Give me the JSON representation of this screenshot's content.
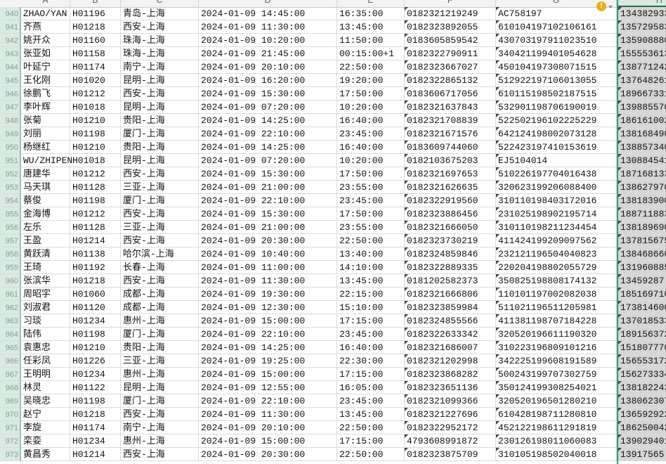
{
  "columns": [
    "A",
    "B",
    "C",
    "D",
    "E",
    "F",
    "G",
    "H"
  ],
  "selected_column": "H",
  "accent_color": "#217346",
  "warning_icon": "warning-circle-icon",
  "rows": [
    {
      "n": "940",
      "a": "ZHAO/YAN",
      "b": "H01196",
      "c": "青岛-上海",
      "d": "2024-01-09 14:45:00",
      "e": "16:35:00",
      "f": "0182321219249",
      "g": "AC758197",
      "h": "134382933"
    },
    {
      "n": "941",
      "a": "齐燕",
      "b": "H01218",
      "c": "西安-上海",
      "d": "2024-01-09 11:30:00",
      "e": "13:45:00",
      "f": "0182323892055",
      "g": "610104197102106161",
      "h": "135729583"
    },
    {
      "n": "942",
      "a": "姚开众",
      "b": "H01160",
      "c": "珠海-上海",
      "d": "2024-01-09 10:20:00",
      "e": "11:50:00",
      "f": "0183605859542",
      "g": "430703197911023510",
      "h": "135908880"
    },
    {
      "n": "943",
      "a": "张亚如",
      "b": "H01158",
      "c": "珠海-上海",
      "d": "2024-01-09 21:45:00",
      "e": "00:15:00+1",
      "f": "0182322790911",
      "g": "340421199401054628",
      "h": "155553613"
    },
    {
      "n": "944",
      "a": "叶延宁",
      "b": "H01174",
      "c": "南宁-上海",
      "d": "2024-01-09 20:10:00",
      "e": "22:50:00",
      "f": "0182323667027",
      "g": "450104197308071515",
      "h": "138771242"
    },
    {
      "n": "945",
      "a": "王化刚",
      "b": "H01020",
      "c": "昆明-上海",
      "d": "2024-01-09 16:20:00",
      "e": "19:20:00",
      "f": "0182322865132",
      "g": "512922197106013055",
      "h": "137648261"
    },
    {
      "n": "946",
      "a": "徐鹏飞",
      "b": "H01212",
      "c": "西安-上海",
      "d": "2024-01-09 15:30:00",
      "e": "17:50:00",
      "f": "0183606717056",
      "g": "610115198502187515",
      "h": "189667331"
    },
    {
      "n": "947",
      "a": "李叶辉",
      "b": "H01018",
      "c": "昆明-上海",
      "d": "2024-01-09 07:20:00",
      "e": "10:20:00",
      "f": "0182321637843",
      "g": "532901198706190019",
      "h": "139885570"
    },
    {
      "n": "948",
      "a": "张菊",
      "b": "H01210",
      "c": "贵阳-上海",
      "d": "2024-01-09 14:25:00",
      "e": "16:40:00",
      "f": "0182321708839",
      "g": "522502196102225229",
      "h": "186161002"
    },
    {
      "n": "949",
      "a": "刘丽",
      "b": "H01198",
      "c": "厦门-上海",
      "d": "2024-01-09 22:10:00",
      "e": "23:45:00",
      "f": "0182321671576",
      "g": "642124198002073128",
      "h": "138168490"
    },
    {
      "n": "950",
      "a": "杨继红",
      "b": "H01210",
      "c": "贵阳-上海",
      "d": "2024-01-09 14:25:00",
      "e": "16:40:00",
      "f": "0183609744060",
      "g": "522423197410153619",
      "h": "138857340"
    },
    {
      "n": "951",
      "a": "WU/ZHIPEN",
      "b": "H01018",
      "c": "昆明-上海",
      "d": "2024-01-09 07:20:00",
      "e": "10:20:00",
      "f": "0182103675203",
      "g": "EJ5104014",
      "h": "130884541"
    },
    {
      "n": "952",
      "a": "唐建华",
      "b": "H01212",
      "c": "西安-上海",
      "d": "2024-01-09 15:30:00",
      "e": "17:50:00",
      "f": "0182321697653",
      "g": "510226197704016438",
      "h": "187168133"
    },
    {
      "n": "953",
      "a": "马天琪",
      "b": "H01128",
      "c": "三亚-上海",
      "d": "2024-01-09 21:00:00",
      "e": "23:55:00",
      "f": "0182321626635",
      "g": "320623199206088400",
      "h": "138627970"
    },
    {
      "n": "954",
      "a": "蔡俊",
      "b": "H01198",
      "c": "厦门-上海",
      "d": "2024-01-09 22:10:00",
      "e": "23:45:00",
      "f": "0182322919560",
      "g": "310110198403172016",
      "h": "138183900"
    },
    {
      "n": "955",
      "a": "金海博",
      "b": "H01212",
      "c": "西安-上海",
      "d": "2024-01-09 15:30:00",
      "e": "17:50:00",
      "f": "0182323886456",
      "g": "231025198902195714",
      "h": "188711883"
    },
    {
      "n": "956",
      "a": "左乐",
      "b": "H01128",
      "c": "三亚-上海",
      "d": "2024-01-09 21:00:00",
      "e": "23:55:00",
      "f": "0182321666050",
      "g": "310110198211234454",
      "h": "138189690"
    },
    {
      "n": "957",
      "a": "王盈",
      "b": "H01214",
      "c": "西安-上海",
      "d": "2024-01-09 20:30:00",
      "e": "22:50:00",
      "f": "0182323730219",
      "g": "411424199209097562",
      "h": "137815675"
    },
    {
      "n": "958",
      "a": "黄跃清",
      "b": "H01138",
      "c": "哈尔滨-上海",
      "d": "2024-01-09 10:40:00",
      "e": "13:40:00",
      "f": "0182324859846",
      "g": "232121196504040823",
      "h": "138468660"
    },
    {
      "n": "959",
      "a": "王琦",
      "b": "H01192",
      "c": "长春-上海",
      "d": "2024-01-09 11:00:00",
      "e": "14:10:00",
      "f": "0182322889335",
      "g": "220204198802055729",
      "h": "131960885"
    },
    {
      "n": "960",
      "a": "张滨华",
      "b": "H01218",
      "c": "西安-上海",
      "d": "2024-01-09 11:30:00",
      "e": "13:45:00",
      "f": "0181202582373",
      "g": "350825198808174132",
      "h": "13459287"
    },
    {
      "n": "961",
      "a": "周昭宇",
      "b": "H01060",
      "c": "成都-上海",
      "d": "2024-01-09 19:30:00",
      "e": "22:15:00",
      "f": "0182321666806",
      "g": "110101197002082038",
      "h": "185169710"
    },
    {
      "n": "962",
      "a": "刘淑君",
      "b": "H01120",
      "c": "成都-上海",
      "d": "2024-01-09 12:30:00",
      "e": "15:10:00",
      "f": "0182323859984",
      "g": "511021196511205981",
      "h": "173814600"
    },
    {
      "n": "963",
      "a": "习琰",
      "b": "H01234",
      "c": "惠州-上海",
      "d": "2024-01-09 15:00:00",
      "e": "17:15:00",
      "f": "0182324855566",
      "g": "411381198707184228",
      "h": "137018533"
    },
    {
      "n": "964",
      "a": "陆伟",
      "b": "H01198",
      "c": "厦门-上海",
      "d": "2024-01-09 22:10:00",
      "e": "23:45:00",
      "f": "0182322633342",
      "g": "320520196611190320",
      "h": "189156372"
    },
    {
      "n": "965",
      "a": "袁惠忠",
      "b": "H01210",
      "c": "贵阳-上海",
      "d": "2024-01-09 14:25:00",
      "e": "16:40:00",
      "f": "0182321686007",
      "g": "310223196809101216",
      "h": "151807770"
    },
    {
      "n": "966",
      "a": "任彩凤",
      "b": "H01226",
      "c": "三亚-上海",
      "d": "2024-01-09 19:25:00",
      "e": "22:30:00",
      "f": "0182321202998",
      "g": "342225199608191589",
      "h": "156553172"
    },
    {
      "n": "967",
      "a": "王明明",
      "b": "H01234",
      "c": "惠州-上海",
      "d": "2024-01-09 15:00:00",
      "e": "17:15:00",
      "f": "0182323868282",
      "g": "500243199707302759",
      "h": "156273334"
    },
    {
      "n": "968",
      "a": "林灵",
      "b": "H01122",
      "c": "昆明-上海",
      "d": "2024-01-09 12:55:00",
      "e": "16:05:00",
      "f": "0182323651136",
      "g": "350124199308254021",
      "h": "138182243"
    },
    {
      "n": "969",
      "a": "吴晓忠",
      "b": "H01198",
      "c": "厦门-上海",
      "d": "2024-01-09 22:10:00",
      "e": "23:45:00",
      "f": "0182321099366",
      "g": "320520196501280210",
      "h": "138062307"
    },
    {
      "n": "970",
      "a": "赵宁",
      "b": "H01218",
      "c": "西安-上海",
      "d": "2024-01-09 11:30:00",
      "e": "13:45:00",
      "f": "0182321227696",
      "g": "610428198711280810",
      "h": "136592922"
    },
    {
      "n": "971",
      "a": "李旋",
      "b": "H01174",
      "c": "南宁-上海",
      "d": "2024-01-09 20:10:00",
      "e": "22:50:00",
      "f": "0182322952172",
      "g": "452122198611291819",
      "h": "186250042"
    },
    {
      "n": "972",
      "a": "栾娈",
      "b": "H01234",
      "c": "惠州-上海",
      "d": "2024-01-09 15:00:00",
      "e": "17:15:00",
      "f": "4793608991872",
      "g": "230126198011060083",
      "h": "139029401"
    },
    {
      "n": "973",
      "a": "黄昌秀",
      "b": "H01214",
      "c": "西安-上海",
      "d": "2024-01-09 20:30:00",
      "e": "22:50:00",
      "f": "0182323875709",
      "g": "310105198502040018",
      "h": "13917565"
    }
  ]
}
